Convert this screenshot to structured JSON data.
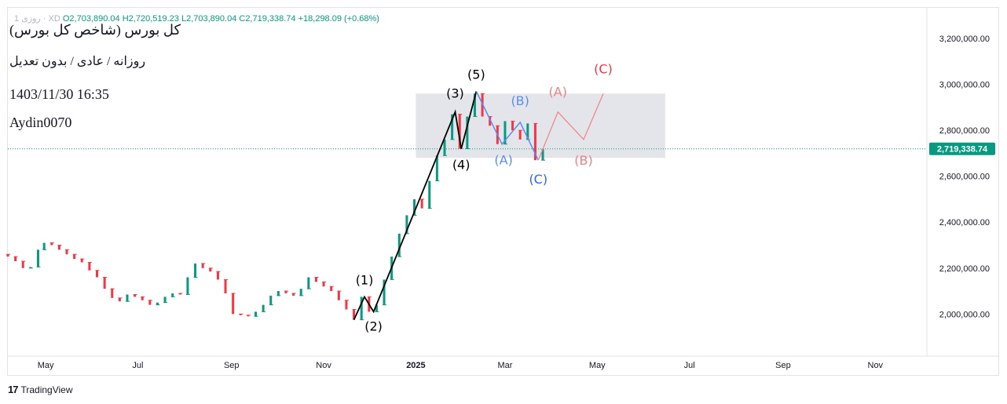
{
  "header": {
    "ohlc_prefix": "1 روزی  ·  XD",
    "open": "O2,703,890.04",
    "high": "H2,720,519.23",
    "low": "L2,703,890.04",
    "close": "C2,719,338.74",
    "change": "+18,298.09 (+0.68%)"
  },
  "overlay": {
    "title": "(کل بورس (شاخص کل بورس",
    "subtitle": "روزانه / عادی / بدون تعدیل",
    "datetime": "1403/11/30 16:35",
    "author": "Aydin0070"
  },
  "footer": {
    "brand": "TradingView",
    "brand_mark": "17"
  },
  "colors": {
    "up": "#089981",
    "down": "#f23645",
    "wave": "#000000",
    "corr_blue": "#5b8def",
    "corr_blue_strong": "#2962ff",
    "proj_red": "#f08080",
    "proj_red_strong": "#f23645",
    "box": "#dfe1e8",
    "price_tag": "#089981"
  },
  "price_tag": "2,719,338.74",
  "chart_data": {
    "type": "candlestick",
    "title": "",
    "x_tick_labels": [
      "May",
      "Jul",
      "Sep",
      "Nov",
      "2025",
      "Mar",
      "May",
      "Jul",
      "Sep",
      "Nov"
    ],
    "y_tick_labels": [
      "3,200,000.00",
      "3,000,000.00",
      "2,800,000.00",
      "2,600,000.00",
      "2,400,000.00",
      "2,200,000.00",
      "2,000,000.00"
    ],
    "y_ticks": [
      3200000,
      3000000,
      2800000,
      2600000,
      2400000,
      2200000,
      2000000
    ],
    "ylim": [
      1820000,
      3330000
    ],
    "last_price": 2719338.74,
    "ohlc": [
      [
        "2024-04-06",
        2260000,
        2250000
      ],
      [
        "2024-04-11",
        2250000,
        2230000
      ],
      [
        "2024-04-16",
        2230000,
        2200000
      ],
      [
        "2024-04-21",
        2200000,
        2205000
      ],
      [
        "2024-04-26",
        2205000,
        2280000
      ],
      [
        "2024-04-30",
        2280000,
        2310000
      ],
      [
        "2024-05-05",
        2310000,
        2300000
      ],
      [
        "2024-05-10",
        2300000,
        2280000
      ],
      [
        "2024-05-15",
        2280000,
        2260000
      ],
      [
        "2024-05-20",
        2260000,
        2240000
      ],
      [
        "2024-05-25",
        2240000,
        2225000
      ],
      [
        "2024-05-30",
        2225000,
        2190000
      ],
      [
        "2024-06-04",
        2190000,
        2160000
      ],
      [
        "2024-06-09",
        2160000,
        2110000
      ],
      [
        "2024-06-14",
        2110000,
        2070000
      ],
      [
        "2024-06-19",
        2070000,
        2055000
      ],
      [
        "2024-06-24",
        2055000,
        2085000
      ],
      [
        "2024-06-29",
        2085000,
        2075000
      ],
      [
        "2024-07-04",
        2075000,
        2060000
      ],
      [
        "2024-07-09",
        2060000,
        2040000
      ],
      [
        "2024-07-14",
        2040000,
        2050000
      ],
      [
        "2024-07-19",
        2050000,
        2075000
      ],
      [
        "2024-07-24",
        2075000,
        2090000
      ],
      [
        "2024-07-29",
        2090000,
        2085000
      ],
      [
        "2024-08-03",
        2085000,
        2160000
      ],
      [
        "2024-08-08",
        2160000,
        2220000
      ],
      [
        "2024-08-13",
        2220000,
        2200000
      ],
      [
        "2024-08-18",
        2200000,
        2185000
      ],
      [
        "2024-08-23",
        2185000,
        2150000
      ],
      [
        "2024-08-28",
        2150000,
        2090000
      ],
      [
        "2024-09-02",
        2090000,
        2000000
      ],
      [
        "2024-09-07",
        2000000,
        1995000
      ],
      [
        "2024-09-12",
        1995000,
        1990000
      ],
      [
        "2024-09-17",
        1990000,
        2010000
      ],
      [
        "2024-09-22",
        2010000,
        2040000
      ],
      [
        "2024-09-27",
        2040000,
        2080000
      ],
      [
        "2024-10-02",
        2080000,
        2100000
      ],
      [
        "2024-10-07",
        2100000,
        2090000
      ],
      [
        "2024-10-12",
        2090000,
        2080000
      ],
      [
        "2024-10-17",
        2080000,
        2110000
      ],
      [
        "2024-10-22",
        2110000,
        2160000
      ],
      [
        "2024-10-27",
        2160000,
        2140000
      ],
      [
        "2024-11-01",
        2140000,
        2120000
      ],
      [
        "2024-11-06",
        2120000,
        2100000
      ],
      [
        "2024-11-11",
        2100000,
        2060000
      ],
      [
        "2024-11-16",
        2060000,
        2020000
      ],
      [
        "2024-11-21",
        2020000,
        1975000
      ],
      [
        "2024-11-26",
        1975000,
        2075000
      ],
      [
        "2024-12-01",
        2075000,
        2010000
      ],
      [
        "2024-12-06",
        2010000,
        2040000
      ],
      [
        "2024-12-11",
        2040000,
        2150000
      ],
      [
        "2024-12-16",
        2150000,
        2250000
      ],
      [
        "2024-12-21",
        2250000,
        2350000
      ],
      [
        "2024-12-26",
        2350000,
        2430000
      ],
      [
        "2024-12-31",
        2430000,
        2500000
      ],
      [
        "2025-01-05",
        2500000,
        2460000
      ],
      [
        "2025-01-10",
        2460000,
        2580000
      ],
      [
        "2025-01-15",
        2580000,
        2690000
      ],
      [
        "2025-01-20",
        2690000,
        2760000
      ],
      [
        "2025-01-25",
        2760000,
        2870000
      ],
      [
        "2025-01-30",
        2870000,
        2720000
      ],
      [
        "2025-02-04",
        2720000,
        2860000
      ],
      [
        "2025-02-09",
        2860000,
        2960000
      ],
      [
        "2025-02-14",
        2960000,
        2860000
      ],
      [
        "2025-02-19",
        2860000,
        2820000
      ],
      [
        "2025-02-24",
        2820000,
        2740000
      ],
      [
        "2025-03-01",
        2740000,
        2840000
      ],
      [
        "2025-03-06",
        2840000,
        2800000
      ],
      [
        "2025-03-11",
        2800000,
        2760000
      ],
      [
        "2025-03-16",
        2760000,
        2830000
      ],
      [
        "2025-03-21",
        2830000,
        2670000
      ],
      [
        "2025-03-26",
        2670000,
        2719338
      ]
    ],
    "wave_labels": [
      {
        "text": "(1)",
        "date": "2024-11-28",
        "price": 2075000,
        "color": "wave"
      },
      {
        "text": "(2)",
        "date": "2024-12-04",
        "price": 2010000,
        "color": "wave"
      },
      {
        "text": "(3)",
        "date": "2025-01-27",
        "price": 2880000,
        "color": "wave"
      },
      {
        "text": "(4)",
        "date": "2025-01-31",
        "price": 2720000,
        "color": "wave"
      },
      {
        "text": "(5)",
        "date": "2025-02-10",
        "price": 2970000,
        "color": "wave"
      },
      {
        "text": "(A)",
        "date": "2025-02-27",
        "price": 2740000,
        "color": "corr_blue"
      },
      {
        "text": "(B)",
        "date": "2025-03-11",
        "price": 2835000,
        "color": "corr_blue"
      },
      {
        "text": "(C)",
        "date": "2025-03-23",
        "price": 2670000,
        "color": "corr_blue_strong"
      },
      {
        "text": "(A)",
        "date": "2025-04-05",
        "price": 2880000,
        "color": "proj_red"
      },
      {
        "text": "(B)",
        "date": "2025-04-22",
        "price": 2760000,
        "color": "proj_red"
      },
      {
        "text": "(C)",
        "date": "2025-05-05",
        "price": 2960000,
        "color": "proj_red_strong"
      }
    ],
    "impulse_path": [
      [
        "2024-11-21",
        1975000
      ],
      [
        "2024-11-28",
        2075000
      ],
      [
        "2024-12-04",
        2010000
      ],
      [
        "2025-01-27",
        2880000
      ],
      [
        "2025-01-31",
        2720000
      ],
      [
        "2025-02-10",
        2970000
      ]
    ],
    "correction_path": [
      [
        "2025-02-10",
        2970000
      ],
      [
        "2025-02-27",
        2740000
      ],
      [
        "2025-03-11",
        2835000
      ],
      [
        "2025-03-23",
        2670000
      ]
    ],
    "projection_path": [
      [
        "2025-03-23",
        2670000
      ],
      [
        "2025-04-05",
        2880000
      ],
      [
        "2025-04-22",
        2760000
      ],
      [
        "2025-05-05",
        2960000
      ]
    ],
    "zone": {
      "start": "2025-01-01",
      "end": "2025-06-15",
      "top": 2960000,
      "bottom": 2680000
    }
  }
}
